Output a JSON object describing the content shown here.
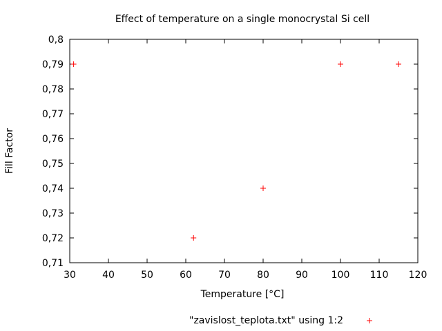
{
  "chart_data": {
    "type": "scatter",
    "title": "Effect of temperature on a single monocrystal Si cell",
    "xlabel": "Temperature [°C]",
    "ylabel": "Fill Factor",
    "xlim": [
      30,
      120
    ],
    "ylim": [
      0.71,
      0.8
    ],
    "x_ticks": [
      30,
      40,
      50,
      60,
      70,
      80,
      90,
      100,
      110,
      120
    ],
    "x_tick_labels": [
      "30",
      "40",
      "50",
      "60",
      "70",
      "80",
      "90",
      "100",
      "110",
      "120"
    ],
    "y_ticks": [
      0.71,
      0.72,
      0.73,
      0.74,
      0.75,
      0.76,
      0.77,
      0.78,
      0.79,
      0.8
    ],
    "y_tick_labels": [
      "0,71",
      "0,72",
      "0,73",
      "0,74",
      "0,75",
      "0,76",
      "0,77",
      "0,78",
      "0,79",
      "0,8"
    ],
    "grid": false,
    "legend_position": "bottom-center",
    "series": [
      {
        "name": "\"zavislost_teplota.txt\" using 1:2",
        "marker": "plus",
        "color": "#ff0000",
        "x": [
          31,
          62,
          80,
          100,
          115
        ],
        "y": [
          0.79,
          0.72,
          0.74,
          0.79,
          0.79
        ]
      }
    ]
  }
}
